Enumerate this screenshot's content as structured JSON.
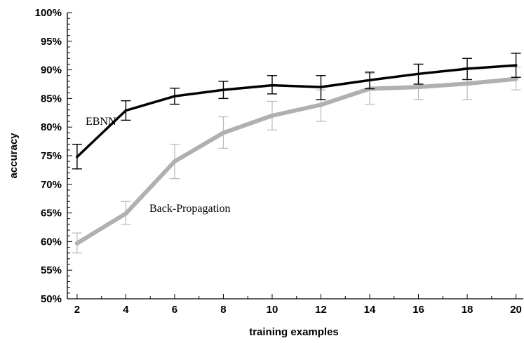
{
  "chart_data": {
    "type": "line",
    "title": "",
    "xlabel": "training examples",
    "ylabel": "accuracy",
    "x": [
      2,
      4,
      6,
      8,
      10,
      12,
      14,
      16,
      18,
      20
    ],
    "x_ticks": [
      "2",
      "4",
      "6",
      "8",
      "10",
      "12",
      "14",
      "16",
      "18",
      "20"
    ],
    "xlim": [
      1.6,
      20.3
    ],
    "ylim": [
      50,
      100
    ],
    "y_ticks": [
      "50%",
      "55%",
      "60%",
      "65%",
      "70%",
      "75%",
      "80%",
      "85%",
      "90%",
      "95%",
      "100%"
    ],
    "grid": false,
    "legend": "none",
    "series": [
      {
        "name": "EBNN",
        "color": "#000000",
        "values": [
          74.8,
          82.9,
          85.4,
          86.5,
          87.3,
          87.0,
          88.2,
          89.3,
          90.2,
          90.8
        ],
        "err_low": [
          72.7,
          81.2,
          84.0,
          85.0,
          85.8,
          84.8,
          86.7,
          87.5,
          88.3,
          88.7
        ],
        "err_high": [
          77.0,
          84.6,
          86.8,
          88.0,
          89.0,
          89.0,
          89.6,
          91.0,
          92.0,
          92.9
        ]
      },
      {
        "name": "Back-Propagation",
        "color": "#b0b0b0",
        "values": [
          59.7,
          64.9,
          74.0,
          79.0,
          82.0,
          83.9,
          86.7,
          87.0,
          87.6,
          88.4
        ],
        "err_low": [
          58.0,
          63.0,
          71.0,
          76.3,
          79.5,
          81.0,
          84.0,
          84.8,
          84.8,
          86.5
        ],
        "err_high": [
          61.5,
          67.0,
          77.0,
          81.8,
          84.5,
          86.5,
          89.4,
          89.2,
          90.4,
          90.5
        ]
      }
    ]
  }
}
